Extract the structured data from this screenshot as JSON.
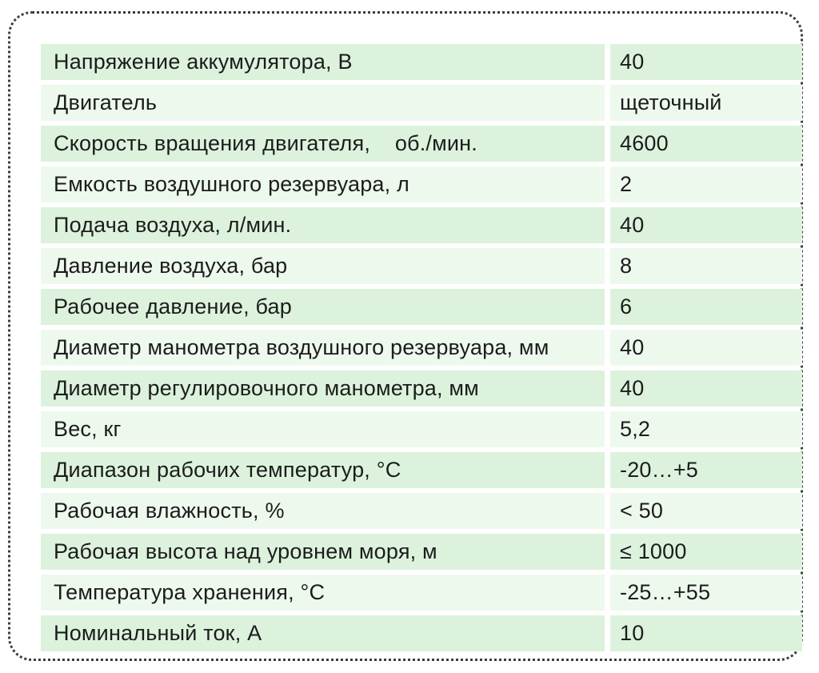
{
  "page": {
    "background_color": "#ffffff",
    "frame_border_color": "#3c3c3c",
    "frame_border_style": "dotted"
  },
  "table": {
    "row_color_odd": "#dcf2dc",
    "row_color_even": "#eef9ee",
    "text_color": "#1c1c1c",
    "rows": [
      {
        "label": "Напряжение аккумулятора, В",
        "value": "40"
      },
      {
        "label": "Двигатель",
        "value": "щеточный"
      },
      {
        "label": "Скорость вращения двигателя,    об./мин.",
        "value": "4600"
      },
      {
        "label": "Емкость воздушного резервуара, л",
        "value": "2"
      },
      {
        "label": "Подача воздуха, л/мин.",
        "value": "40"
      },
      {
        "label": "Давление воздуха, бар",
        "value": "8"
      },
      {
        "label": "Рабочее давление, бар",
        "value": "6"
      },
      {
        "label": "Диаметр манометра воздушного резервуара, мм",
        "value": "40"
      },
      {
        "label": "Диаметр регулировочного манометра, мм",
        "value": "40"
      },
      {
        "label": "Вес, кг",
        "value": "5,2"
      },
      {
        "label": "Диапазон рабочих температур, °С",
        "value": "-20…+5"
      },
      {
        "label": "Рабочая влажность, %",
        "value": "< 50"
      },
      {
        "label": "Рабочая высота над уровнем моря, м",
        "value": "≤ 1000"
      },
      {
        "label": "Температура хранения, °С",
        "value": "-25…+55"
      },
      {
        "label": "Номинальный ток, А",
        "value": "10"
      }
    ]
  }
}
